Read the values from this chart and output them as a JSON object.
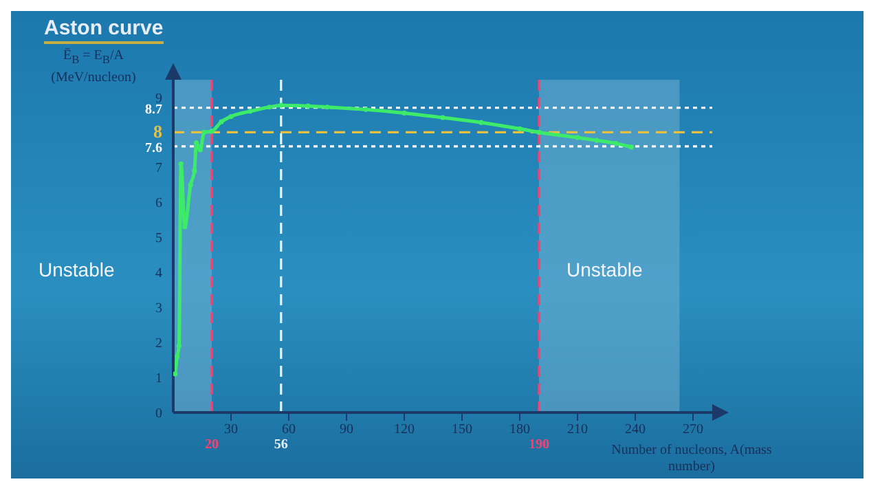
{
  "chart_data": {
    "type": "line",
    "title": "Aston curve",
    "xlabel": "Number of nucleons, A(mass number)",
    "ylabel": "Ē$_{B}$ = E$_{B}$/A (MeV/nucleon)",
    "x": [
      1,
      2,
      3,
      4,
      6,
      9,
      11,
      12,
      14,
      16,
      20,
      25,
      30,
      40,
      50,
      56,
      70,
      80,
      100,
      120,
      140,
      160,
      180,
      190,
      210,
      220,
      230,
      238
    ],
    "series": [
      {
        "color": "#3dea6a",
        "values": [
          1.1,
          1.6,
          1.9,
          7.1,
          5.3,
          6.5,
          6.9,
          7.7,
          7.5,
          8.0,
          8.03,
          8.3,
          8.45,
          8.6,
          8.72,
          8.77,
          8.75,
          8.72,
          8.65,
          8.55,
          8.42,
          8.28,
          8.1,
          8.0,
          7.85,
          7.77,
          7.68,
          7.58
        ]
      }
    ],
    "xlim": [
      0,
      280
    ],
    "xticks": [
      30,
      60,
      90,
      120,
      150,
      180,
      210,
      240,
      270
    ],
    "ylim": [
      0,
      9.5
    ],
    "yticks": [
      0,
      1,
      2,
      3,
      4,
      5,
      6,
      7,
      9
    ],
    "marker": "circle",
    "line_style": "solid",
    "ref_lines": [
      {
        "axis": "y",
        "value": 8.7,
        "label": "8.7",
        "color": "#ffffff",
        "line_style": "dotted"
      },
      {
        "axis": "y",
        "value": 8,
        "label": "8",
        "color": "#e8c040",
        "line_style": "dashed"
      },
      {
        "axis": "y",
        "value": 7.6,
        "label": "7.6",
        "color": "#ffffff",
        "line_style": "dotted"
      },
      {
        "axis": "x",
        "value": 20,
        "label": "20",
        "color": "#ff3d6e",
        "line_style": "dashed"
      },
      {
        "axis": "x",
        "value": 56,
        "label": "56",
        "color": "#e8f4ff",
        "line_style": "dashed"
      },
      {
        "axis": "x",
        "value": 190,
        "label": "190",
        "color": "#ff3d6e",
        "line_style": "dashed"
      }
    ],
    "bands": [
      {
        "axis": "x",
        "from": 0,
        "to": 20,
        "color": "#7fb8d8"
      },
      {
        "axis": "x",
        "from": 190,
        "to": 263,
        "color": "#7fb8d8"
      }
    ],
    "annotations": [
      "Unstable",
      "Unstable"
    ]
  }
}
